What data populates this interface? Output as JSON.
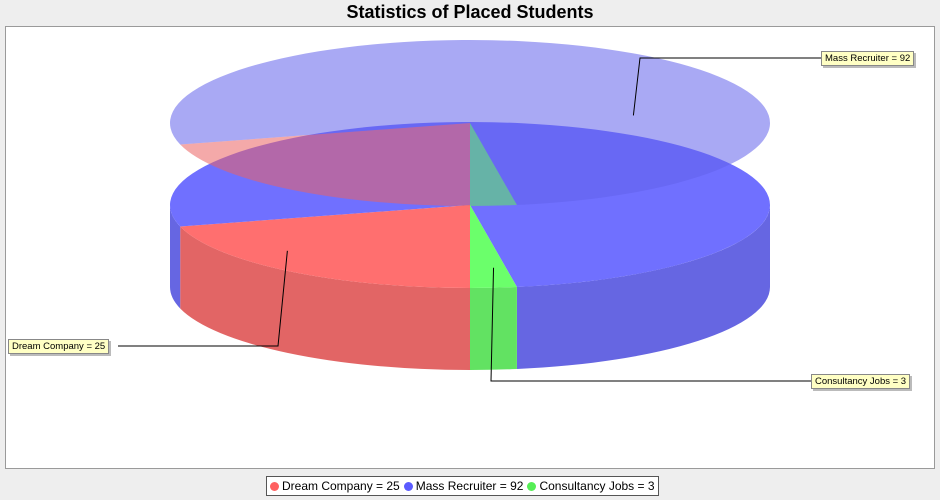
{
  "chart_data": {
    "type": "pie",
    "title": "Statistics of Placed Students",
    "slices": [
      {
        "label": "Dream Company",
        "value": 25,
        "color": "#ff6a6a",
        "callout": "Dream Company = 25",
        "legend": "Dream Company = 25"
      },
      {
        "label": "Mass Recruiter",
        "value": 92,
        "color": "#6b6bff",
        "callout": "Mass Recruiter = 92",
        "legend": "Mass Recruiter = 92"
      },
      {
        "label": "Consultancy Jobs",
        "value": 3,
        "color": "#66ff66",
        "callout": "Consultancy Jobs  = 3",
        "legend": "Consultancy Jobs  = 3"
      }
    ],
    "legend_position": "bottom",
    "style": "3d"
  }
}
